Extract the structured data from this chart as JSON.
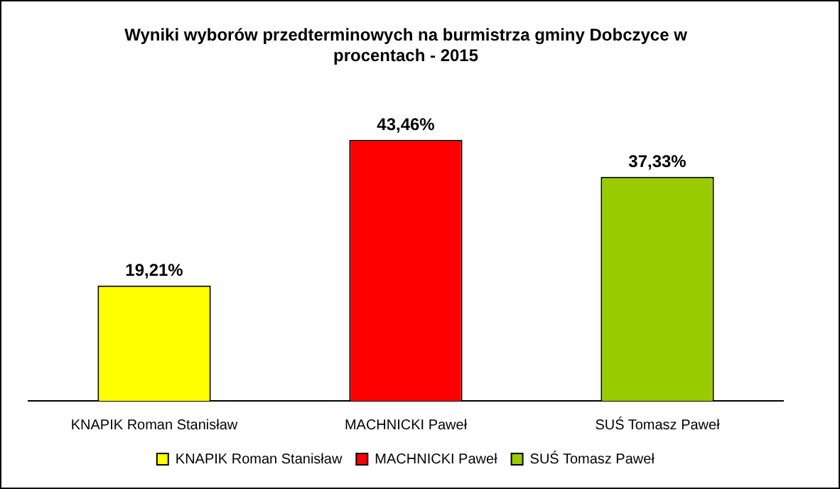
{
  "chart_data": {
    "type": "bar",
    "title": "Wyniki wyborów przedterminowych na burmistrza gminy Dobczyce w procentach - 2015",
    "categories": [
      "KNAPIK Roman Stanisław",
      "MACHNICKI Paweł",
      "SUŚ Tomasz Paweł"
    ],
    "series": [
      {
        "name": "KNAPIK Roman Stanisław",
        "color": "#ffff00",
        "values": [
          19.21,
          null,
          null
        ],
        "value_labels": [
          "19,21%",
          null,
          null
        ]
      },
      {
        "name": "MACHNICKI Paweł",
        "color": "#ff0000",
        "values": [
          null,
          43.46,
          null
        ],
        "value_labels": [
          null,
          "43,46%",
          null
        ]
      },
      {
        "name": "SUŚ Tomasz Paweł",
        "color": "#99cc00",
        "values": [
          null,
          null,
          37.33
        ],
        "value_labels": [
          null,
          null,
          "37,33%"
        ]
      }
    ],
    "tick_labels": "x",
    "grid": false,
    "legend": "bottom"
  }
}
